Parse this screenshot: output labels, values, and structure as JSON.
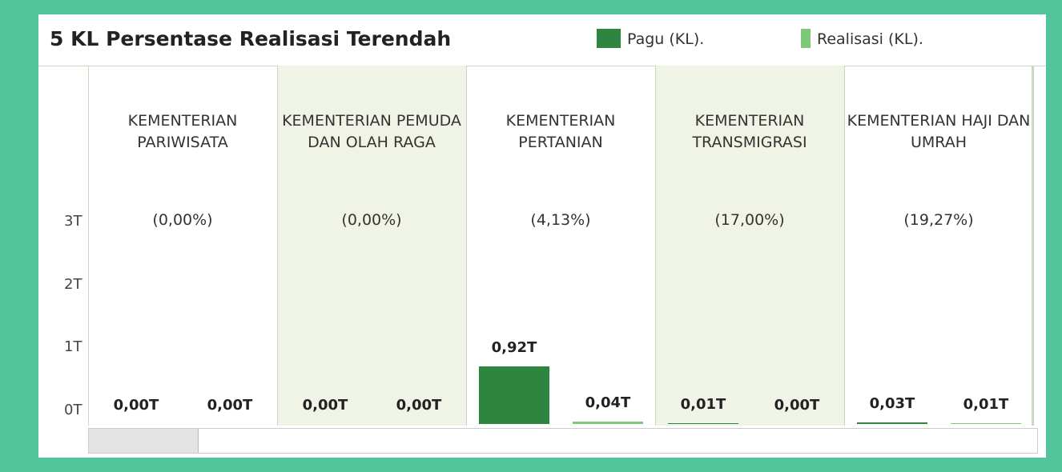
{
  "chart_data": {
    "type": "bar",
    "title": "5 KL Persentase Realisasi Terendah",
    "categories": [
      "KEMENTERIAN PARIWISATA",
      "KEMENTERIAN PEMUDA DAN OLAH RAGA",
      "KEMENTERIAN PERTANIAN",
      "KEMENTERIAN TRANSMIGRASI",
      "KEMENTERIAN HAJI DAN UMRAH"
    ],
    "percent_labels": [
      "(0,00%)",
      "(0,00%)",
      "(4,13%)",
      "(17,00%)",
      "(19,27%)"
    ],
    "series": [
      {
        "name": "Pagu (KL).",
        "color": "#2e8540",
        "values": [
          0,
          0,
          0.92,
          0.01,
          0.03
        ],
        "value_labels": [
          "0,00T",
          "0,00T",
          "0,92T",
          "0,01T",
          "0,03T"
        ]
      },
      {
        "name": "Realisasi (KL).",
        "color": "#7dc97a",
        "values": [
          0,
          0,
          0.04,
          0,
          0.01
        ],
        "value_labels": [
          "0,00T",
          "0,00T",
          "0,04T",
          "0,00T",
          "0,01T"
        ]
      }
    ],
    "ylim": [
      0,
      5.6
    ],
    "yticks": [
      {
        "value": 0,
        "label": "0T"
      },
      {
        "value": 1,
        "label": "1T"
      },
      {
        "value": 2,
        "label": "2T"
      },
      {
        "value": 3,
        "label": "3T"
      }
    ]
  }
}
